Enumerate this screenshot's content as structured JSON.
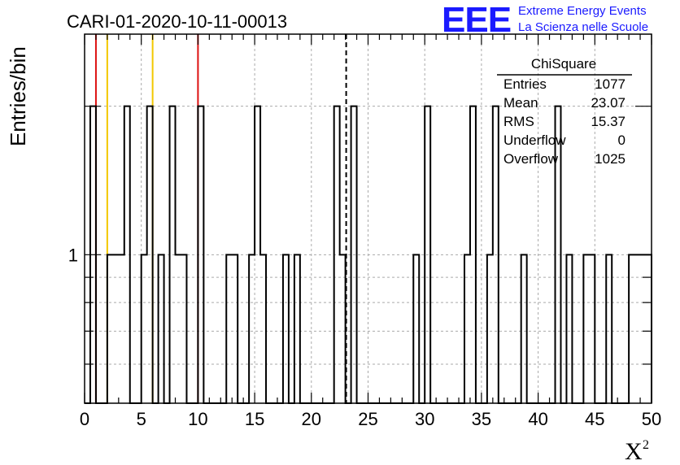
{
  "chart_data": {
    "type": "histogram",
    "title": "CARI-01-2020-10-11-00013",
    "xlabel": "X",
    "xlabel_superscript": "2",
    "ylabel": "Entries/bin",
    "xlim": [
      0,
      50
    ],
    "ylim": [
      0.5,
      2.8
    ],
    "log_y": true,
    "grid": true,
    "bin_width": 0.5,
    "x_ticks": [
      "0",
      "5",
      "10",
      "15",
      "20",
      "25",
      "30",
      "35",
      "40",
      "45",
      "50"
    ],
    "y_ticks": [
      "1"
    ],
    "bins": [
      {
        "x": 0.0,
        "y": 0.5
      },
      {
        "x": 0.5,
        "y": 2
      },
      {
        "x": 1.0,
        "y": 0.5
      },
      {
        "x": 1.5,
        "y": 0.5
      },
      {
        "x": 2.0,
        "y": 1
      },
      {
        "x": 2.5,
        "y": 1
      },
      {
        "x": 3.0,
        "y": 1
      },
      {
        "x": 3.5,
        "y": 2
      },
      {
        "x": 4.0,
        "y": 0.5
      },
      {
        "x": 4.5,
        "y": 0.5
      },
      {
        "x": 5.0,
        "y": 1
      },
      {
        "x": 5.5,
        "y": 2
      },
      {
        "x": 6.0,
        "y": 0.5
      },
      {
        "x": 6.5,
        "y": 1
      },
      {
        "x": 7.0,
        "y": 0.5
      },
      {
        "x": 7.5,
        "y": 2
      },
      {
        "x": 8.0,
        "y": 1
      },
      {
        "x": 8.5,
        "y": 1
      },
      {
        "x": 9.0,
        "y": 0.5
      },
      {
        "x": 9.5,
        "y": 0.5
      },
      {
        "x": 10.0,
        "y": 2
      },
      {
        "x": 10.5,
        "y": 0.5
      },
      {
        "x": 11.0,
        "y": 0.5
      },
      {
        "x": 11.5,
        "y": 0.5
      },
      {
        "x": 12.0,
        "y": 0.5
      },
      {
        "x": 12.5,
        "y": 1
      },
      {
        "x": 13.0,
        "y": 1
      },
      {
        "x": 13.5,
        "y": 0.5
      },
      {
        "x": 14.0,
        "y": 0.5
      },
      {
        "x": 14.5,
        "y": 1
      },
      {
        "x": 15.0,
        "y": 2
      },
      {
        "x": 15.5,
        "y": 1
      },
      {
        "x": 16.0,
        "y": 0.5
      },
      {
        "x": 16.5,
        "y": 0.5
      },
      {
        "x": 17.0,
        "y": 0.5
      },
      {
        "x": 17.5,
        "y": 1
      },
      {
        "x": 18.0,
        "y": 0.5
      },
      {
        "x": 18.5,
        "y": 1
      },
      {
        "x": 19.0,
        "y": 0.5
      },
      {
        "x": 19.5,
        "y": 0.5
      },
      {
        "x": 20.0,
        "y": 0.5
      },
      {
        "x": 20.5,
        "y": 0.5
      },
      {
        "x": 21.0,
        "y": 0.5
      },
      {
        "x": 21.5,
        "y": 0.5
      },
      {
        "x": 22.0,
        "y": 2
      },
      {
        "x": 22.5,
        "y": 1
      },
      {
        "x": 23.0,
        "y": 0.5
      },
      {
        "x": 23.5,
        "y": 2
      },
      {
        "x": 24.0,
        "y": 0.5
      },
      {
        "x": 24.5,
        "y": 0.5
      },
      {
        "x": 25.0,
        "y": 0.5
      },
      {
        "x": 25.5,
        "y": 0.5
      },
      {
        "x": 26.0,
        "y": 0.5
      },
      {
        "x": 26.5,
        "y": 0.5
      },
      {
        "x": 27.0,
        "y": 0.5
      },
      {
        "x": 27.5,
        "y": 0.5
      },
      {
        "x": 28.0,
        "y": 0.5
      },
      {
        "x": 28.5,
        "y": 0.5
      },
      {
        "x": 29.0,
        "y": 1
      },
      {
        "x": 29.5,
        "y": 0.5
      },
      {
        "x": 30.0,
        "y": 2
      },
      {
        "x": 30.5,
        "y": 0.5
      },
      {
        "x": 31.0,
        "y": 0.5
      },
      {
        "x": 31.5,
        "y": 0.5
      },
      {
        "x": 32.0,
        "y": 0.5
      },
      {
        "x": 32.5,
        "y": 0.5
      },
      {
        "x": 33.0,
        "y": 0.5
      },
      {
        "x": 33.5,
        "y": 1
      },
      {
        "x": 34.0,
        "y": 2
      },
      {
        "x": 34.5,
        "y": 0.5
      },
      {
        "x": 35.0,
        "y": 0.5
      },
      {
        "x": 35.5,
        "y": 1
      },
      {
        "x": 36.0,
        "y": 2
      },
      {
        "x": 36.5,
        "y": 0.5
      },
      {
        "x": 37.0,
        "y": 0.5
      },
      {
        "x": 37.5,
        "y": 0.5
      },
      {
        "x": 38.0,
        "y": 0.5
      },
      {
        "x": 38.5,
        "y": 1
      },
      {
        "x": 39.0,
        "y": 0.5
      },
      {
        "x": 39.5,
        "y": 0.5
      },
      {
        "x": 40.0,
        "y": 0.5
      },
      {
        "x": 40.5,
        "y": 0.5
      },
      {
        "x": 41.0,
        "y": 0.5
      },
      {
        "x": 41.5,
        "y": 2
      },
      {
        "x": 42.0,
        "y": 0.5
      },
      {
        "x": 42.5,
        "y": 1
      },
      {
        "x": 43.0,
        "y": 0.5
      },
      {
        "x": 43.5,
        "y": 0.5
      },
      {
        "x": 44.0,
        "y": 1
      },
      {
        "x": 44.5,
        "y": 1
      },
      {
        "x": 45.0,
        "y": 0.5
      },
      {
        "x": 45.5,
        "y": 0.5
      },
      {
        "x": 46.0,
        "y": 1
      },
      {
        "x": 46.5,
        "y": 0.5
      },
      {
        "x": 47.0,
        "y": 0.5
      },
      {
        "x": 47.5,
        "y": 0.5
      },
      {
        "x": 48.0,
        "y": 1
      },
      {
        "x": 48.5,
        "y": 1
      },
      {
        "x": 49.0,
        "y": 1
      },
      {
        "x": 49.5,
        "y": 1
      }
    ],
    "reference_lines": [
      {
        "x": 1.0,
        "color": "#dd1111",
        "style": "solid"
      },
      {
        "x": 2.0,
        "color": "#f2c800",
        "style": "solid"
      },
      {
        "x": 6.0,
        "color": "#f2c800",
        "style": "solid"
      },
      {
        "x": 10.0,
        "color": "#dd1111",
        "style": "solid"
      },
      {
        "x": 23.07,
        "color": "#000000",
        "style": "dashed"
      }
    ],
    "stats_box": {
      "title": "ChiSquare",
      "rows": [
        {
          "label": "Entries",
          "value": "1077"
        },
        {
          "label": "Mean",
          "value": "23.07"
        },
        {
          "label": "RMS",
          "value": "15.37"
        },
        {
          "label": "Underflow",
          "value": "0"
        },
        {
          "label": "Overflow",
          "value": "1025"
        }
      ]
    },
    "logo": {
      "mark": "EEE",
      "line1": "Extreme Energy Events",
      "line2": "La Scienza nelle Scuole",
      "color": "#1a1aff"
    }
  }
}
